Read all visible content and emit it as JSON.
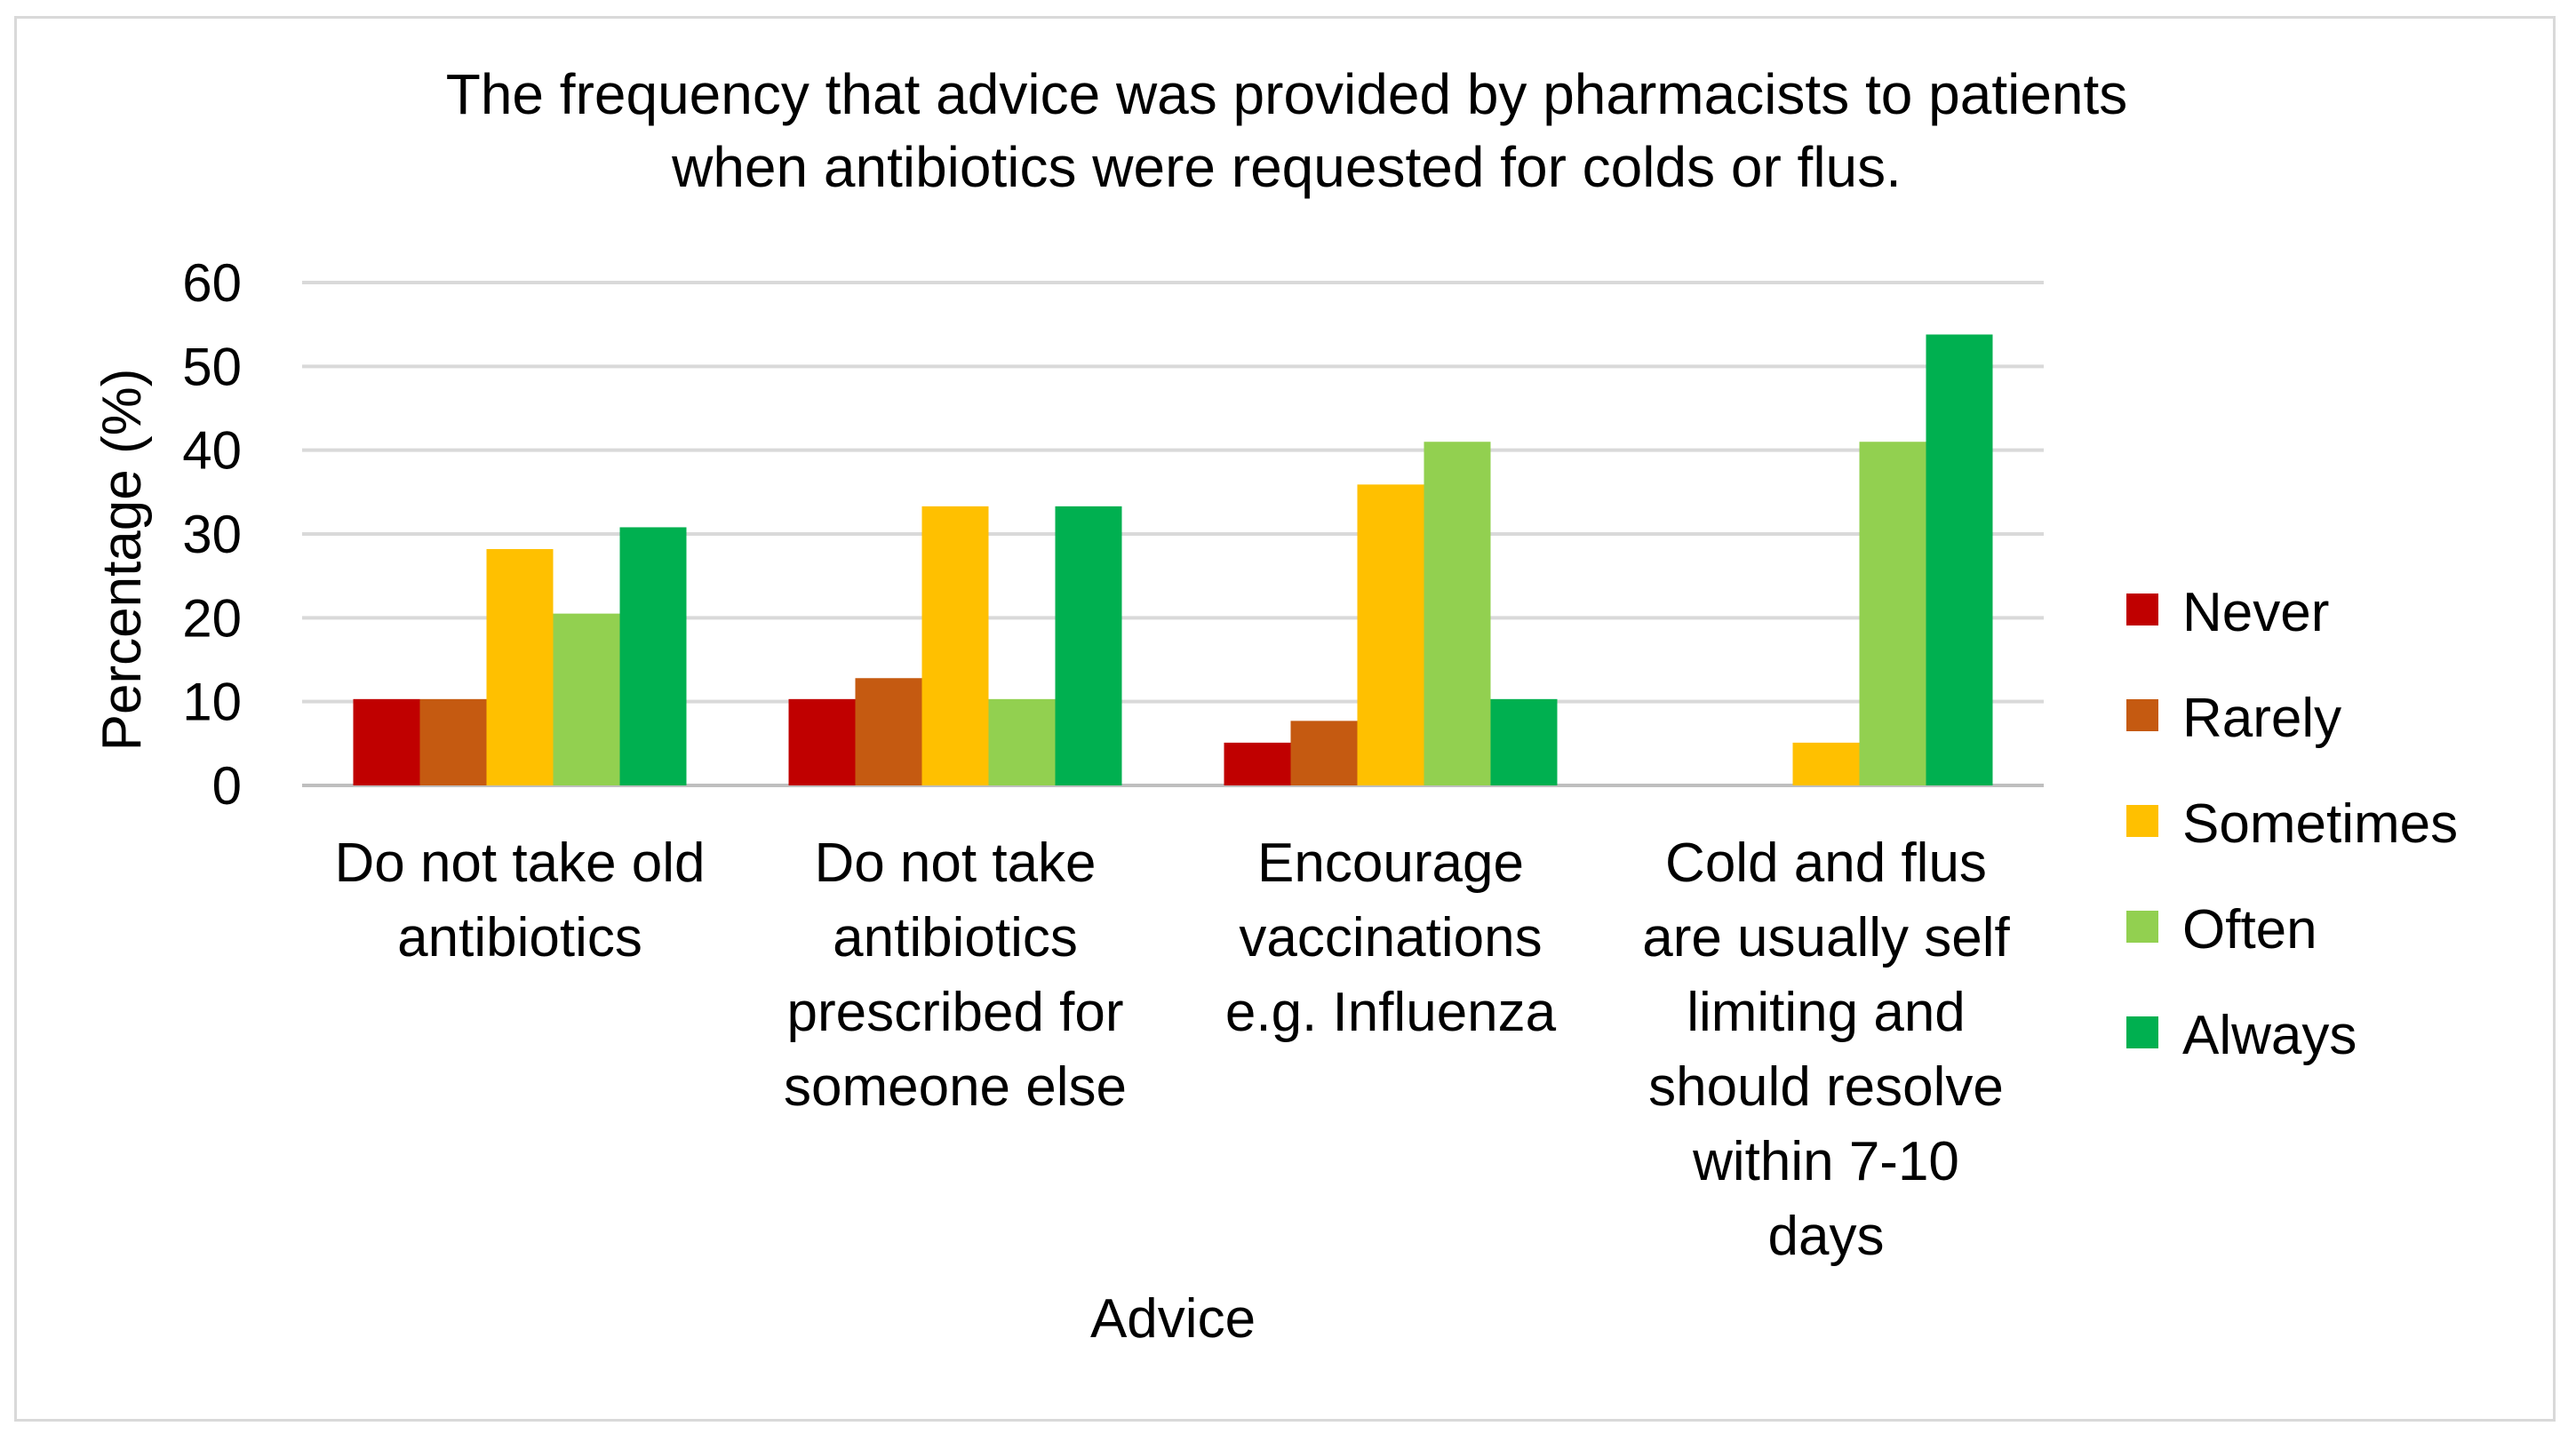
{
  "chart_data": {
    "type": "bar",
    "title": "The frequency that advice was provided by pharmacists to patients when antibiotics were requested for colds or flus.",
    "title_lines": [
      "The frequency that advice was provided by pharmacists to patients",
      "when antibiotics were requested for colds or flus."
    ],
    "xlabel": "Advice",
    "ylabel": "Percentage (%)",
    "ylim": [
      0,
      60
    ],
    "yticks": [
      "0",
      "10",
      "20",
      "30",
      "40",
      "50",
      "60"
    ],
    "gridlines": true,
    "legend_position": "right",
    "categories": [
      "Do not take old antibiotics",
      "Do not take antibiotics prescribed for someone else",
      "Encourage vaccinations e.g. Influenza",
      "Cold and flus are usually self limiting and should resolve within 7-10 days"
    ],
    "category_lines": [
      [
        "Do not take old",
        "antibiotics"
      ],
      [
        "Do not take",
        "antibiotics",
        "prescribed for",
        "someone else"
      ],
      [
        "Encourage",
        "vaccinations",
        "e.g. Influenza"
      ],
      [
        "Cold and flus",
        "are usually self",
        "limiting and",
        "should resolve",
        "within 7-10",
        "days"
      ]
    ],
    "series": [
      {
        "name": "Never",
        "color": "#c00000",
        "values": [
          10.3,
          10.3,
          5.1,
          0
        ]
      },
      {
        "name": "Rarely",
        "color": "#c55a11",
        "values": [
          10.3,
          12.8,
          7.7,
          0
        ]
      },
      {
        "name": "Sometimes",
        "color": "#ffc000",
        "values": [
          28.2,
          33.3,
          35.9,
          5.1
        ]
      },
      {
        "name": "Often",
        "color": "#92d050",
        "values": [
          20.5,
          10.3,
          41.0,
          41.0
        ]
      },
      {
        "name": "Always",
        "color": "#00b050",
        "values": [
          30.8,
          33.3,
          10.3,
          53.8
        ]
      }
    ]
  }
}
